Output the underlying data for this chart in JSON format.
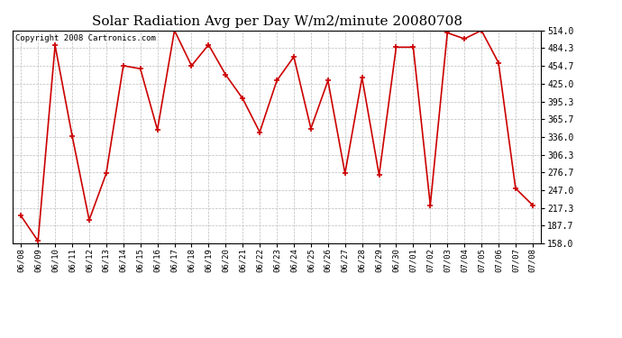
{
  "title": "Solar Radiation Avg per Day W/m2/minute 20080708",
  "copyright": "Copyright 2008 Cartronics.com",
  "dates": [
    "06/08",
    "06/09",
    "06/10",
    "06/11",
    "06/12",
    "06/13",
    "06/14",
    "06/15",
    "06/16",
    "06/17",
    "06/18",
    "06/19",
    "06/20",
    "06/21",
    "06/22",
    "06/23",
    "06/24",
    "06/25",
    "06/26",
    "06/27",
    "06/28",
    "06/29",
    "06/30",
    "07/01",
    "07/02",
    "07/03",
    "07/04",
    "07/05",
    "07/06",
    "07/07",
    "07/08"
  ],
  "values": [
    204,
    162,
    489,
    338,
    197,
    275,
    455,
    450,
    348,
    514,
    455,
    490,
    440,
    400,
    344,
    430,
    470,
    350,
    430,
    275,
    435,
    272,
    486,
    486,
    222,
    510,
    500,
    514,
    460,
    250,
    222
  ],
  "ylim": [
    158.0,
    514.0
  ],
  "yticks": [
    158.0,
    187.7,
    217.3,
    247.0,
    276.7,
    306.3,
    336.0,
    365.7,
    395.3,
    425.0,
    454.7,
    484.3,
    514.0
  ],
  "line_color": "#cc0000",
  "marker_color": "#cc0000",
  "bg_color": "#ffffff",
  "grid_color": "#bbbbbb",
  "title_fontsize": 11,
  "copyright_fontsize": 6.5,
  "tick_fontsize": 6.5,
  "ytick_fontsize": 7
}
